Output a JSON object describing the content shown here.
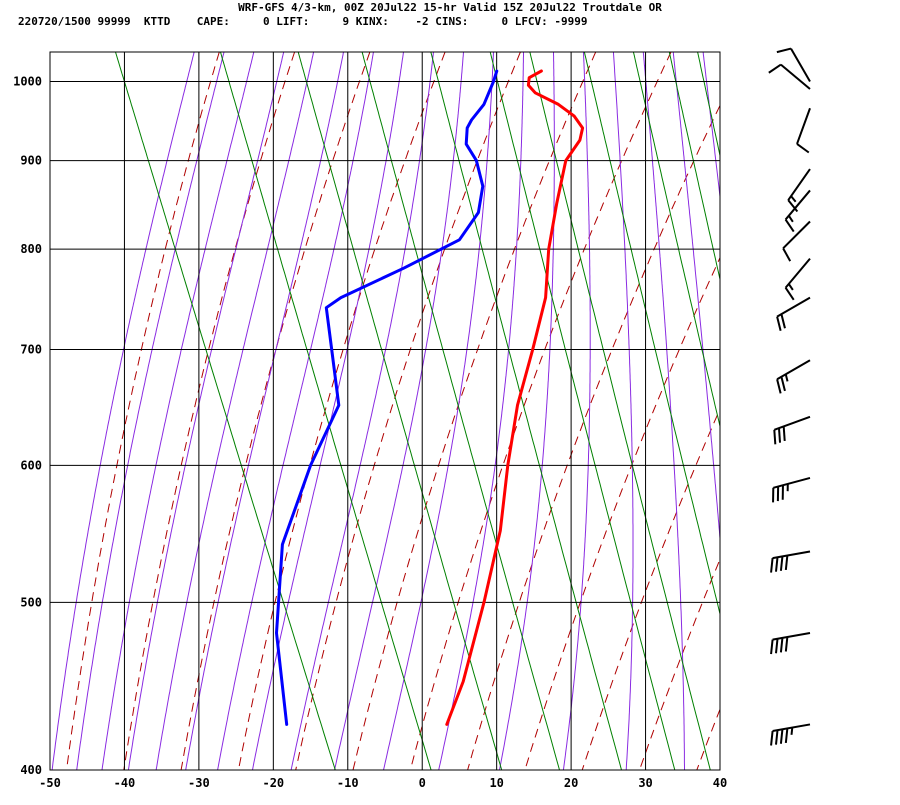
{
  "header": {
    "line1": "WRF-GFS 4/3-km, 00Z 20Jul22 15-hr Valid 15Z 20Jul22 Troutdale OR",
    "line2": "220720/1500 99999  KTTD    CAPE:     0 LIFT:     9 KINX:    -2 CINS:     0 LFCV: -9999"
  },
  "colors": {
    "temperature": "#ff0000",
    "dewpoint": "#0000ff",
    "dry_adiabat": "#b00000",
    "moist_adiabat": "#8a2be2",
    "mixing_ratio": "#008000",
    "grid": "#000000"
  },
  "chart_data": {
    "type": "skew-t log-p sounding",
    "x_axis": {
      "label": "",
      "range": [
        -50,
        40
      ],
      "ticks": [
        "-50",
        "-40",
        "-30",
        "-20",
        "-10",
        "0",
        "10",
        "20",
        "30",
        "40"
      ]
    },
    "y_axis": {
      "label": "",
      "scale": "log",
      "range": [
        1040,
        400
      ],
      "ticks": [
        "400",
        "500",
        "600",
        "700",
        "800",
        "900",
        "1000"
      ]
    },
    "grid": true,
    "series": [
      {
        "key": "temperature",
        "points": [
          {
            "p": 1014,
            "t": 15.0
          },
          {
            "p": 1005,
            "t": 13.0
          },
          {
            "p": 995,
            "t": 12.5
          },
          {
            "p": 985,
            "t": 13.0
          },
          {
            "p": 970,
            "t": 15.5
          },
          {
            "p": 955,
            "t": 17.0
          },
          {
            "p": 940,
            "t": 17.5
          },
          {
            "p": 925,
            "t": 16.5
          },
          {
            "p": 900,
            "t": 13.5
          },
          {
            "p": 850,
            "t": 10.0
          },
          {
            "p": 800,
            "t": 6.5
          },
          {
            "p": 750,
            "t": 3.5
          },
          {
            "p": 700,
            "t": -1.0
          },
          {
            "p": 650,
            "t": -6.0
          },
          {
            "p": 600,
            "t": -10.5
          },
          {
            "p": 550,
            "t": -15.0
          },
          {
            "p": 500,
            "t": -21.0
          },
          {
            "p": 450,
            "t": -28.0
          },
          {
            "p": 425,
            "t": -32.5
          }
        ]
      },
      {
        "key": "dewpoint",
        "points": [
          {
            "p": 1014,
            "t": 9.0
          },
          {
            "p": 1000,
            "t": 8.0
          },
          {
            "p": 970,
            "t": 5.5
          },
          {
            "p": 950,
            "t": 3.0
          },
          {
            "p": 940,
            "t": 2.0
          },
          {
            "p": 920,
            "t": 1.0
          },
          {
            "p": 900,
            "t": 1.5
          },
          {
            "p": 870,
            "t": 1.0
          },
          {
            "p": 840,
            "t": -1.0
          },
          {
            "p": 810,
            "t": -5.0
          },
          {
            "p": 780,
            "t": -14.0
          },
          {
            "p": 750,
            "t": -24.0
          },
          {
            "p": 740,
            "t": -26.5
          },
          {
            "p": 700,
            "t": -28.0
          },
          {
            "p": 650,
            "t": -30.0
          },
          {
            "p": 600,
            "t": -37.0
          },
          {
            "p": 540,
            "t": -45.0
          },
          {
            "p": 480,
            "t": -50.5
          },
          {
            "p": 425,
            "t": -54.0
          }
        ]
      }
    ],
    "wind_barbs": [
      {
        "p": 1000,
        "dir": 330,
        "spd": 10
      },
      {
        "p": 990,
        "dir": 310,
        "spd": 10
      },
      {
        "p": 965,
        "dir": 200,
        "spd": 10
      },
      {
        "p": 890,
        "dir": 215,
        "spd": 15
      },
      {
        "p": 865,
        "dir": 220,
        "spd": 15
      },
      {
        "p": 830,
        "dir": 225,
        "spd": 10
      },
      {
        "p": 790,
        "dir": 220,
        "spd": 15
      },
      {
        "p": 750,
        "dir": 240,
        "spd": 20
      },
      {
        "p": 690,
        "dir": 240,
        "spd": 25
      },
      {
        "p": 640,
        "dir": 250,
        "spd": 30
      },
      {
        "p": 590,
        "dir": 255,
        "spd": 35
      },
      {
        "p": 535,
        "dir": 260,
        "spd": 40
      },
      {
        "p": 480,
        "dir": 260,
        "spd": 40
      },
      {
        "p": 425,
        "dir": 260,
        "spd": 45
      }
    ]
  }
}
